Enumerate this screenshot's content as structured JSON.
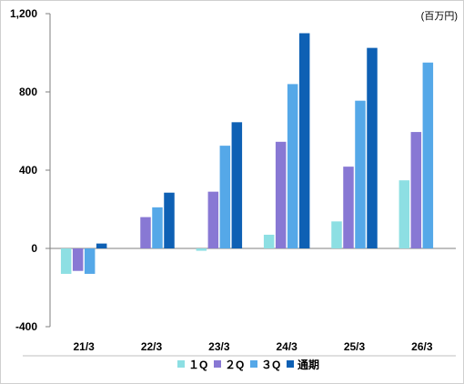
{
  "chart_data": {
    "type": "bar",
    "unit_label": "(百万円)",
    "categories": [
      "21/3",
      "22/3",
      "23/3",
      "24/3",
      "25/3",
      "26/3"
    ],
    "series": [
      {
        "name": "１Q",
        "color": "#8ddfe3",
        "values": [
          -130,
          0,
          -12,
          70,
          138,
          348
        ]
      },
      {
        "name": "２Q",
        "color": "#8878d4",
        "values": [
          -115,
          160,
          290,
          545,
          418,
          595
        ]
      },
      {
        "name": "３Q",
        "color": "#55a8e8",
        "values": [
          -130,
          210,
          525,
          840,
          755,
          950
        ]
      },
      {
        "name": "通期",
        "color": "#0e60b4",
        "values": [
          25,
          285,
          645,
          1100,
          1025,
          null
        ]
      }
    ],
    "ylim": [
      -400,
      1200
    ],
    "yticks": [
      -400,
      0,
      400,
      800,
      1200
    ],
    "ytick_labels": [
      "-400",
      "0",
      "400",
      "800",
      "1,200"
    ],
    "grid": false,
    "legend_position": "bottom"
  }
}
